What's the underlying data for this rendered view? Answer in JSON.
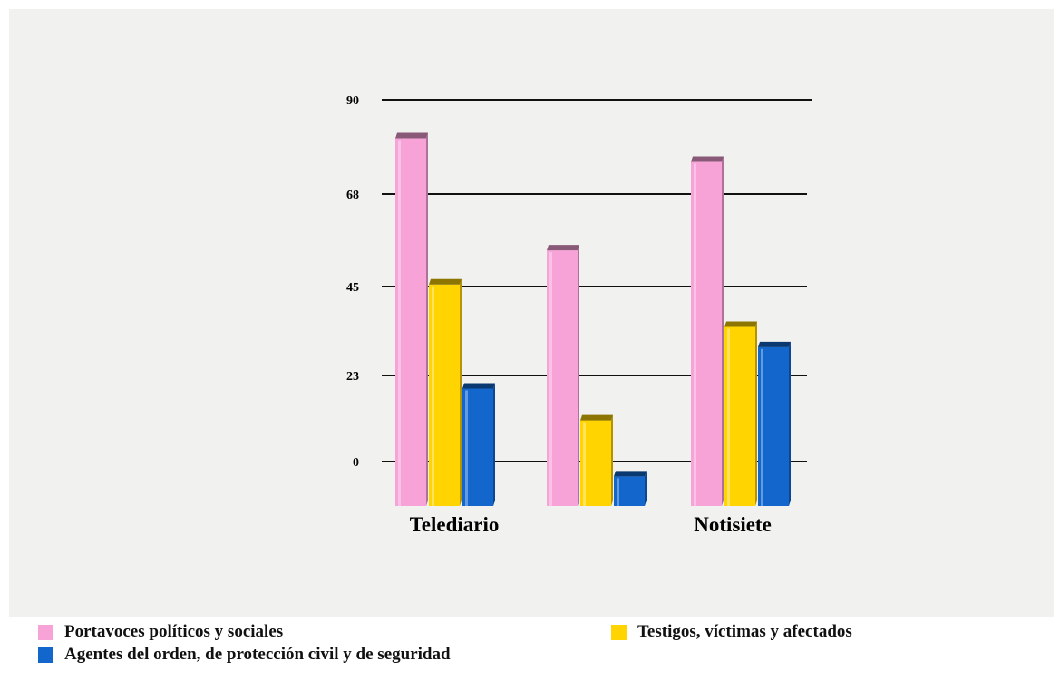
{
  "chart_data": {
    "type": "bar",
    "categories": [
      "Telediario",
      "",
      "Notisiete"
    ],
    "series": [
      {
        "name": "Portavoces políticos y sociales",
        "values": [
          81,
          54,
          75.5
        ],
        "color": "#f7a3d8"
      },
      {
        "name": "Testigos, víctimas y afectados",
        "values": [
          45.5,
          11,
          35
        ],
        "color": "#ffd400"
      },
      {
        "name": "Agentes del orden, de protección civil y de seguridad",
        "values": [
          19.5,
          -4,
          30
        ],
        "color": "#1266cc"
      }
    ],
    "yticks": [
      0,
      23,
      45,
      68,
      90
    ],
    "ylim": [
      -12,
      90
    ],
    "grid": true,
    "legend_position": "bottom"
  }
}
